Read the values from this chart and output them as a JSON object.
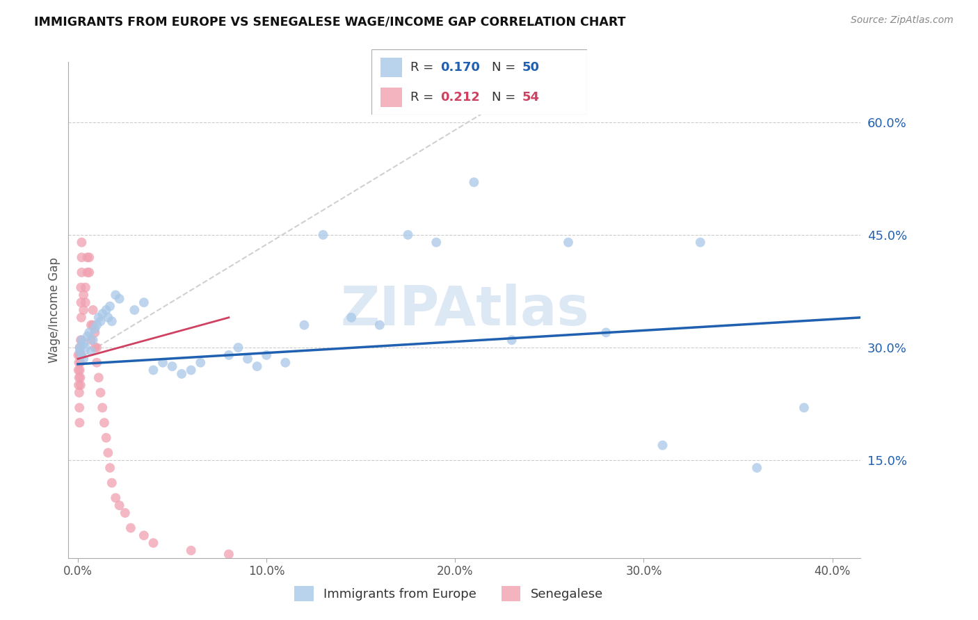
{
  "title": "IMMIGRANTS FROM EUROPE VS SENEGALESE WAGE/INCOME GAP CORRELATION CHART",
  "source": "Source: ZipAtlas.com",
  "ylabel": "Wage/Income Gap",
  "x_tick_labels": [
    "0.0%",
    "10.0%",
    "20.0%",
    "30.0%",
    "40.0%"
  ],
  "x_tick_values": [
    0.0,
    0.1,
    0.2,
    0.3,
    0.4
  ],
  "y_tick_labels_right": [
    "15.0%",
    "30.0%",
    "45.0%",
    "60.0%"
  ],
  "y_tick_values": [
    0.15,
    0.3,
    0.45,
    0.6
  ],
  "xlim": [
    -0.005,
    0.415
  ],
  "ylim": [
    0.02,
    0.68
  ],
  "legend1_label": "Immigrants from Europe",
  "legend2_label": "Senegalese",
  "R1": "0.170",
  "N1": "50",
  "R2": "0.212",
  "N2": "54",
  "color_blue": "#a8c8e8",
  "color_blue_line": "#2060b0",
  "color_pink": "#f0a0b0",
  "color_pink_line": "#d04060",
  "color_ref_line": "#d0d0d0",
  "marker_size": 100,
  "blue_points_x": [
    0.001,
    0.001,
    0.002,
    0.002,
    0.003,
    0.003,
    0.004,
    0.005,
    0.006,
    0.007,
    0.008,
    0.009,
    0.01,
    0.011,
    0.012,
    0.013,
    0.015,
    0.016,
    0.017,
    0.018,
    0.02,
    0.022,
    0.03,
    0.035,
    0.04,
    0.045,
    0.05,
    0.055,
    0.06,
    0.065,
    0.08,
    0.085,
    0.09,
    0.095,
    0.1,
    0.11,
    0.12,
    0.13,
    0.145,
    0.16,
    0.175,
    0.19,
    0.21,
    0.23,
    0.26,
    0.28,
    0.31,
    0.33,
    0.36,
    0.385
  ],
  "blue_points_y": [
    0.3,
    0.295,
    0.31,
    0.29,
    0.305,
    0.285,
    0.3,
    0.315,
    0.32,
    0.295,
    0.31,
    0.325,
    0.33,
    0.34,
    0.335,
    0.345,
    0.35,
    0.34,
    0.355,
    0.335,
    0.37,
    0.365,
    0.35,
    0.36,
    0.27,
    0.28,
    0.275,
    0.265,
    0.27,
    0.28,
    0.29,
    0.3,
    0.285,
    0.275,
    0.29,
    0.28,
    0.33,
    0.45,
    0.34,
    0.33,
    0.45,
    0.44,
    0.52,
    0.31,
    0.44,
    0.32,
    0.17,
    0.44,
    0.14,
    0.22
  ],
  "pink_points_x": [
    0.0002,
    0.0003,
    0.0004,
    0.0005,
    0.0006,
    0.0007,
    0.0008,
    0.0009,
    0.001,
    0.001,
    0.001,
    0.0012,
    0.0013,
    0.0014,
    0.0015,
    0.0015,
    0.0016,
    0.0017,
    0.0018,
    0.002,
    0.002,
    0.002,
    0.003,
    0.003,
    0.004,
    0.004,
    0.005,
    0.005,
    0.006,
    0.006,
    0.007,
    0.007,
    0.008,
    0.008,
    0.009,
    0.009,
    0.01,
    0.01,
    0.011,
    0.012,
    0.013,
    0.014,
    0.015,
    0.016,
    0.017,
    0.018,
    0.02,
    0.022,
    0.025,
    0.028,
    0.035,
    0.04,
    0.06,
    0.08
  ],
  "pink_points_y": [
    0.29,
    0.27,
    0.25,
    0.28,
    0.26,
    0.24,
    0.22,
    0.2,
    0.29,
    0.27,
    0.3,
    0.28,
    0.26,
    0.25,
    0.31,
    0.29,
    0.38,
    0.36,
    0.34,
    0.42,
    0.4,
    0.44,
    0.37,
    0.35,
    0.38,
    0.36,
    0.42,
    0.4,
    0.42,
    0.4,
    0.31,
    0.33,
    0.35,
    0.33,
    0.32,
    0.3,
    0.3,
    0.28,
    0.26,
    0.24,
    0.22,
    0.2,
    0.18,
    0.16,
    0.14,
    0.12,
    0.1,
    0.09,
    0.08,
    0.06,
    0.05,
    0.04,
    0.03,
    0.025
  ],
  "ref_line_x": [
    0.0,
    0.22
  ],
  "ref_line_y": [
    0.285,
    0.62
  ],
  "blue_trend_x": [
    0.0,
    0.415
  ],
  "blue_trend_y": [
    0.278,
    0.34
  ],
  "pink_trend_x": [
    0.0,
    0.08
  ],
  "pink_trend_y": [
    0.285,
    0.34
  ]
}
